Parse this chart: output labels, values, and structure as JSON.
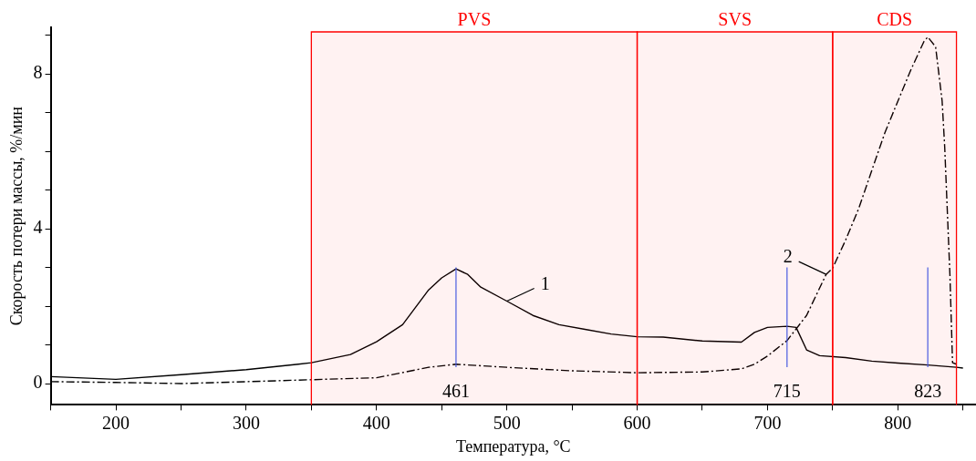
{
  "chart_data": {
    "type": "line",
    "xlabel": "Температура, °C",
    "ylabel": "Скорость потери массы, %/мин",
    "xlim": [
      150,
      860
    ],
    "ylim": [
      -0.55,
      9.2
    ],
    "xticks": [
      {
        "value": 150,
        "label": null
      },
      200,
      {
        "value": 250,
        "label": null
      },
      300,
      {
        "value": 350,
        "label": null
      },
      400,
      {
        "value": 450,
        "label": null
      },
      500,
      {
        "value": 550,
        "label": null
      },
      600,
      {
        "value": 650,
        "label": null
      },
      700,
      {
        "value": 750,
        "label": null
      },
      800,
      {
        "value": 850,
        "label": null
      }
    ],
    "yticks": [
      0,
      {
        "value": 1,
        "label": null
      },
      {
        "value": 2,
        "label": null
      },
      {
        "value": 3,
        "label": null
      },
      4,
      {
        "value": 5,
        "label": null
      },
      {
        "value": 6,
        "label": null
      },
      {
        "value": 7,
        "label": null
      },
      8,
      {
        "value": 9,
        "label": null
      }
    ],
    "grid": false,
    "legend": false,
    "marker": "none",
    "series": [
      {
        "color": "#000000",
        "line_style": "solid",
        "x": [
          150,
          200,
          250,
          300,
          340,
          350,
          380,
          400,
          420,
          440,
          450,
          461,
          470,
          480,
          500,
          520,
          540,
          560,
          580,
          600,
          620,
          650,
          680,
          690,
          700,
          715,
          722,
          730,
          740,
          760,
          780,
          800,
          823,
          845,
          850
        ],
        "values": [
          0.18,
          0.11,
          0.23,
          0.36,
          0.5,
          0.54,
          0.75,
          1.08,
          1.52,
          2.42,
          2.73,
          2.96,
          2.82,
          2.49,
          2.13,
          1.76,
          1.52,
          1.4,
          1.28,
          1.21,
          1.2,
          1.1,
          1.07,
          1.32,
          1.45,
          1.48,
          1.45,
          0.87,
          0.72,
          0.67,
          0.58,
          0.53,
          0.48,
          0.42,
          0.4
        ]
      },
      {
        "color": "#000000",
        "line_style": "dashed",
        "x": [
          150,
          200,
          250,
          300,
          350,
          400,
          440,
          461,
          500,
          550,
          600,
          650,
          680,
          690,
          700,
          715,
          730,
          745,
          750,
          760,
          770,
          780,
          790,
          800,
          810,
          820,
          823,
          829,
          834,
          836,
          840,
          842,
          845
        ],
        "values": [
          0.05,
          0.03,
          0.0,
          0.05,
          0.1,
          0.15,
          0.42,
          0.5,
          0.42,
          0.33,
          0.28,
          0.3,
          0.38,
          0.5,
          0.71,
          1.11,
          1.76,
          2.82,
          2.98,
          3.71,
          4.52,
          5.5,
          6.47,
          7.29,
          8.1,
          8.83,
          8.95,
          8.7,
          7.3,
          6.1,
          2.8,
          0.54,
          0.5
        ]
      }
    ],
    "bands": [
      {
        "axis": "x",
        "from": 350,
        "to": 600,
        "label": "PVS",
        "color": "#ff0000"
      },
      {
        "axis": "x",
        "from": 600,
        "to": 750,
        "label": "SVS",
        "color": "#ff0000"
      },
      {
        "axis": "x",
        "from": 750,
        "to": 845,
        "label": "CDS",
        "color": "#ff0000"
      }
    ],
    "ref_lines": [
      {
        "axis": "x",
        "value": 461,
        "label": "461",
        "color": "#4a5ce0"
      },
      {
        "axis": "x",
        "value": 715,
        "label": "715",
        "color": "#4a5ce0"
      },
      {
        "axis": "x",
        "value": 823,
        "label": "823",
        "color": "#4a5ce0"
      }
    ],
    "annotations": [
      {
        "text": "1",
        "x": 500,
        "y": 2.13
      },
      {
        "text": "2",
        "x": 745,
        "y": 2.82
      }
    ]
  }
}
